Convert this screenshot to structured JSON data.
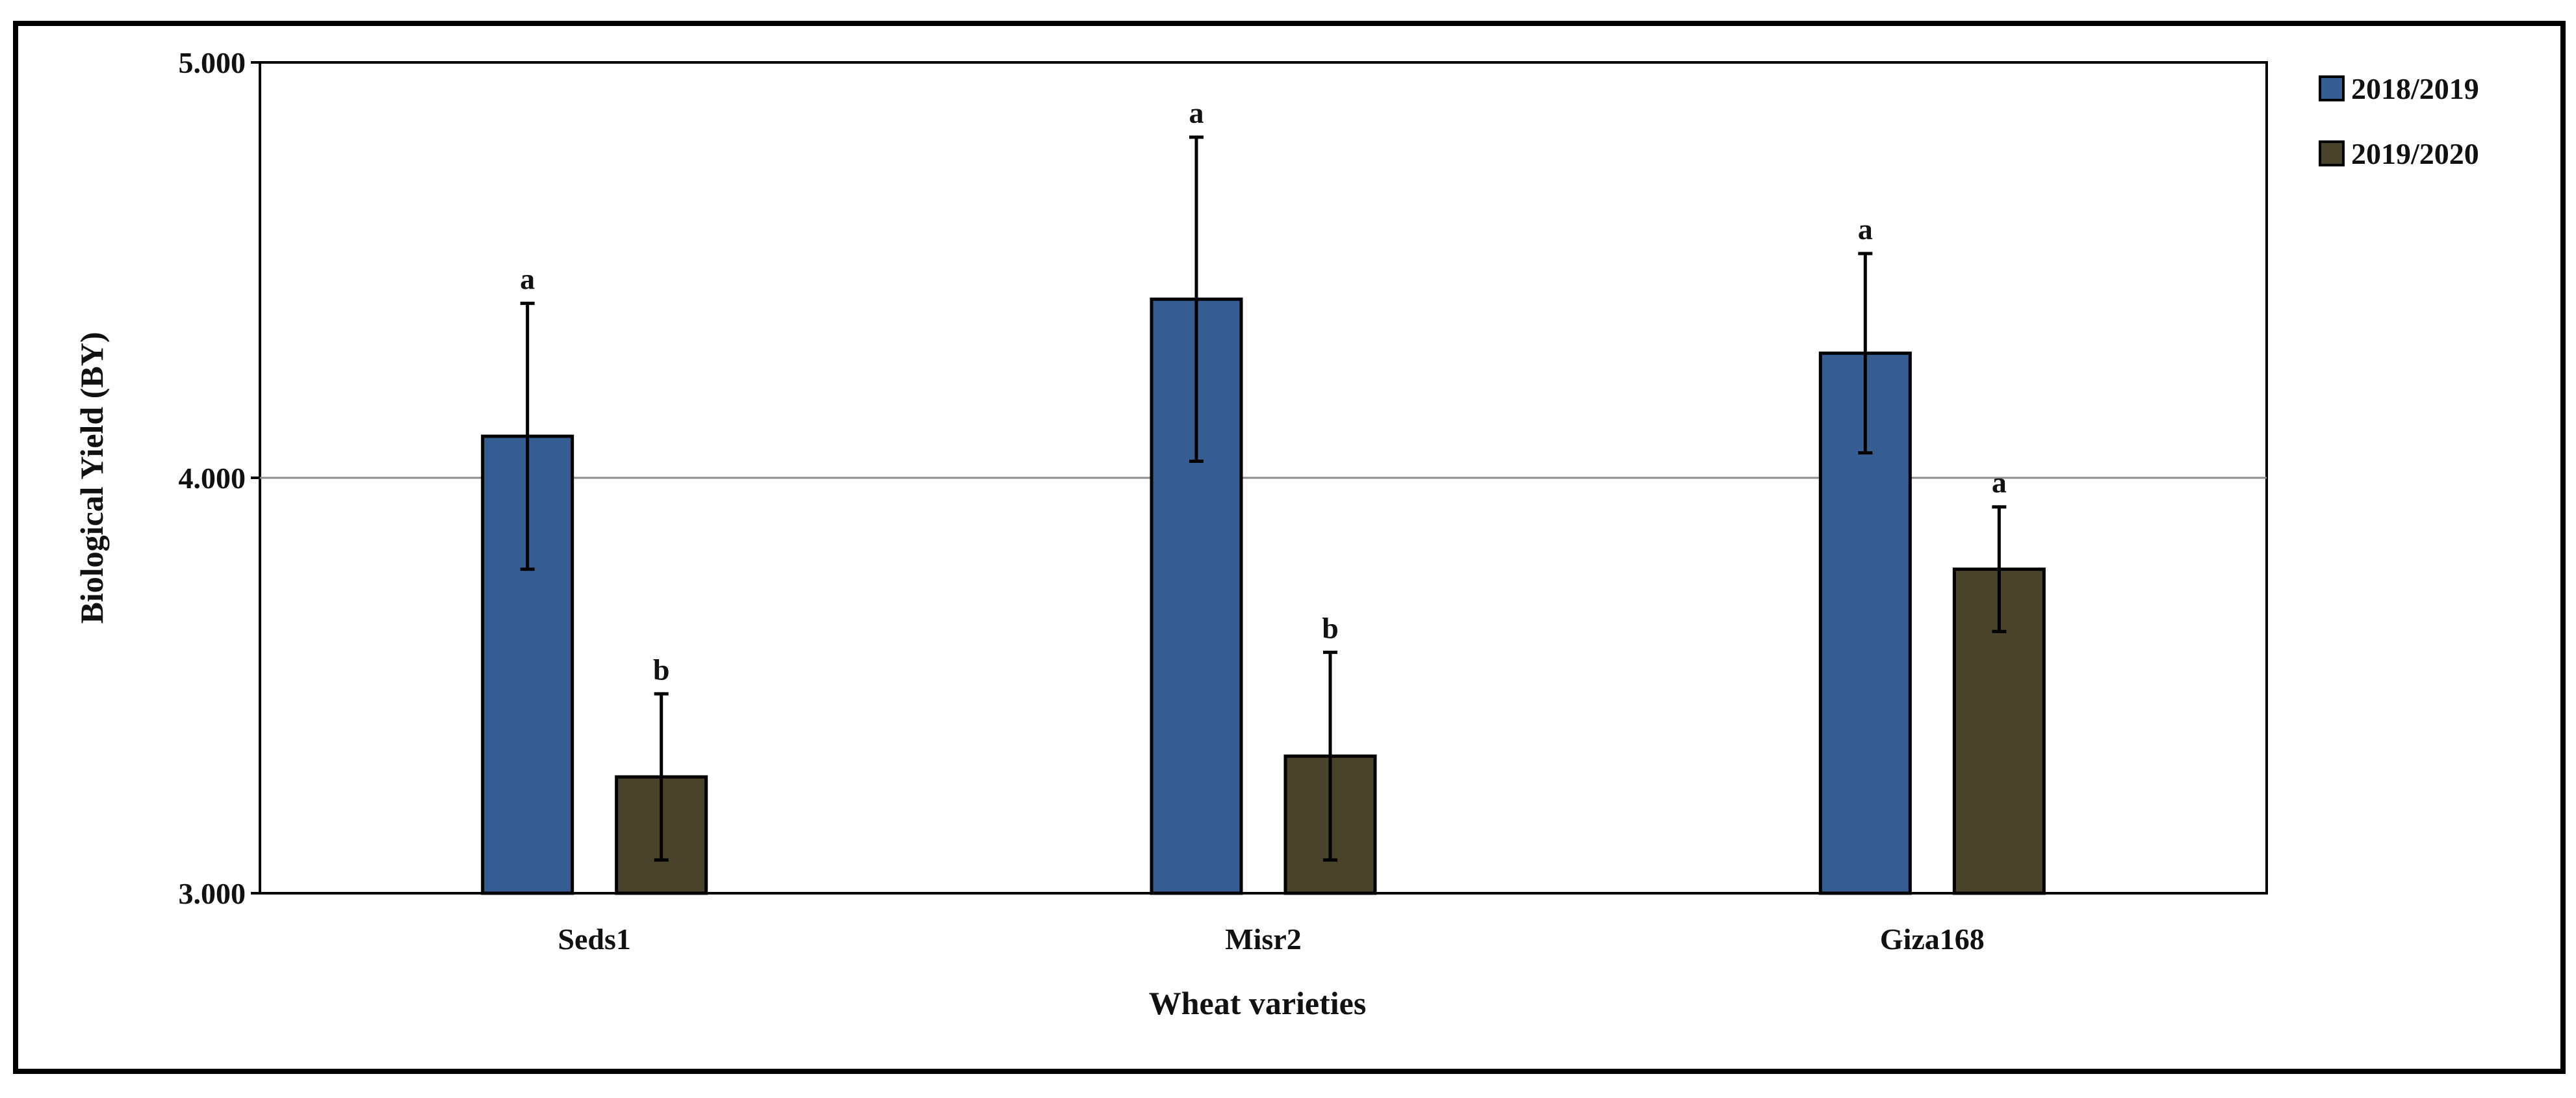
{
  "chart_data": {
    "type": "bar",
    "title": "",
    "xlabel": "Wheat varieties",
    "ylabel": "Biological Yield (BY)",
    "ylim": [
      3.0,
      5.0
    ],
    "yticks": [
      "3.000",
      "4.000",
      "5.000"
    ],
    "ytick_values": [
      3.0,
      4.0,
      5.0
    ],
    "grid": "horizontal",
    "legend_position": "right",
    "categories": [
      "Seds1",
      "Misr2",
      "Giza168"
    ],
    "series": [
      {
        "name": "2018/2019",
        "color": "#355d91",
        "values": [
          4.1,
          4.43,
          4.3
        ],
        "errors": [
          0.32,
          0.39,
          0.24
        ],
        "significance": [
          "a",
          "a",
          "a"
        ]
      },
      {
        "name": "2019/2020",
        "color": "#4a432c",
        "values": [
          3.28,
          3.33,
          3.78
        ],
        "errors": [
          0.2,
          0.25,
          0.15
        ],
        "significance": [
          "b",
          "b",
          "a"
        ]
      }
    ]
  }
}
